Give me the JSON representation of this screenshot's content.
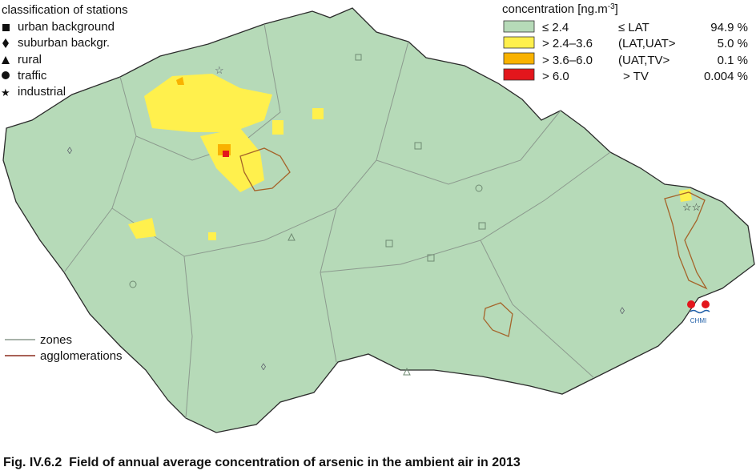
{
  "stations_legend": {
    "title": "classification of stations",
    "items": [
      "urban background",
      "suburban backgr.",
      "rural",
      "traffic",
      "industrial"
    ]
  },
  "concentration_legend": {
    "title": "concentration [ng.m",
    "title_superscript": "-3",
    "title_end": "]",
    "rows": [
      {
        "range": "≤ 2.4",
        "class": "≤ LAT",
        "share": "94.9 %"
      },
      {
        "range": "> 2.4–3.6",
        "class": "(LAT,UAT>",
        "share": "5.0 %"
      },
      {
        "range": "> 3.6–6.0",
        "class": "(UAT,TV>",
        "share": "0.1 %"
      },
      {
        "range": "> 6.0",
        "class": "> TV",
        "share": "0.004 %"
      }
    ]
  },
  "lines_legend": [
    "zones",
    "agglomerations"
  ],
  "logo": "CHMI",
  "caption": "Fig. IV.6.2  Field of annual average concentration of arsenic in the ambient air in 2013"
}
